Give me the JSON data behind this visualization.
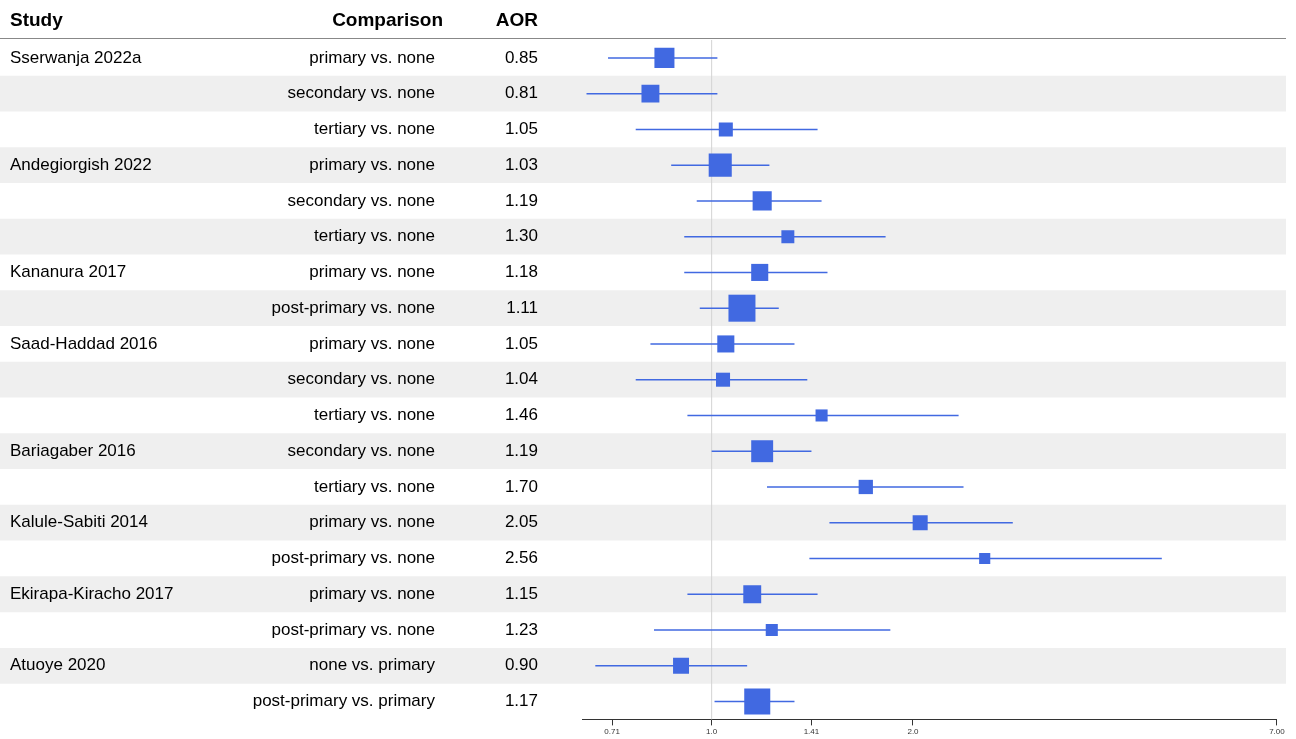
{
  "chart_data": {
    "type": "bubble",
    "orientation": "horizontal",
    "marker": "square",
    "log": "x",
    "annotations": [
      "Study",
      "Comparison",
      "AOR"
    ],
    "y2_categories": [
      "Sserwanja 2022a",
      null,
      null,
      "Andegiorgish 2022",
      null,
      null,
      "Kananura 2017",
      null,
      "Saad-Haddad 2016",
      null,
      null,
      "Bariagaber 2016",
      null,
      "Kalule-Sabiti 2014",
      null,
      "Ekirapa-Kiracho 2017",
      null,
      "Atuoye 2020",
      null
    ],
    "categories": [
      "primary vs. none",
      "secondary vs. none",
      "tertiary vs. none",
      "primary vs. none",
      "secondary vs. none",
      "tertiary vs. none",
      "primary vs. none",
      "post-primary vs. none",
      "primary vs. none",
      "secondary vs. none",
      "tertiary vs. none",
      "secondary vs. none",
      "tertiary vs. none",
      "primary vs. none",
      "post-primary vs. none",
      "primary vs. none",
      "post-primary vs. none",
      "none vs. primary",
      "post-primary vs. primary"
    ],
    "values": [
      0.85,
      0.81,
      1.05,
      1.03,
      1.19,
      1.3,
      1.18,
      1.11,
      1.05,
      1.04,
      1.46,
      1.19,
      1.7,
      2.05,
      2.56,
      1.15,
      1.23,
      0.9,
      1.17
    ],
    "value_labels": [
      "0.85",
      "0.81",
      "1.05",
      "1.03",
      "1.19",
      "1.30",
      "1.18",
      "1.11",
      "1.05",
      "1.04",
      "1.46",
      "1.19",
      "1.70",
      "2.05",
      "2.56",
      "1.15",
      "1.23",
      "0.90",
      "1.17"
    ],
    "errors": [
      [
        0.7,
        1.02
      ],
      [
        0.65,
        1.02
      ],
      [
        0.77,
        1.44
      ],
      [
        0.87,
        1.22
      ],
      [
        0.95,
        1.46
      ],
      [
        0.91,
        1.82
      ],
      [
        0.91,
        1.49
      ],
      [
        0.96,
        1.26
      ],
      [
        0.81,
        1.33
      ],
      [
        0.77,
        1.39
      ],
      [
        0.92,
        2.34
      ],
      [
        1.0,
        1.41
      ],
      [
        1.21,
        2.38
      ],
      [
        1.5,
        2.82
      ],
      [
        1.4,
        4.71
      ],
      [
        0.92,
        1.44
      ],
      [
        0.82,
        1.85
      ],
      [
        0.67,
        1.13
      ],
      [
        1.01,
        1.33
      ]
    ],
    "sizes": [
      0.55,
      0.44,
      0.27,
      0.73,
      0.5,
      0.23,
      0.4,
      1,
      0.4,
      0.27,
      0.2,
      0.66,
      0.28,
      0.31,
      0.17,
      0.44,
      0.2,
      0.35,
      0.93
    ],
    "color": "#4169e1",
    "xlim": [
      0.64,
      7
    ],
    "xticks": [
      0.71,
      {
        "value": 1,
        "label": "1.0"
      },
      1.41,
      {
        "value": 2,
        "label": "2.0"
      },
      {
        "value": 7,
        "label": "7.00"
      }
    ],
    "ref_lines": [
      {
        "axis": "x",
        "value": 1,
        "color": "#d3d3d3"
      }
    ]
  }
}
